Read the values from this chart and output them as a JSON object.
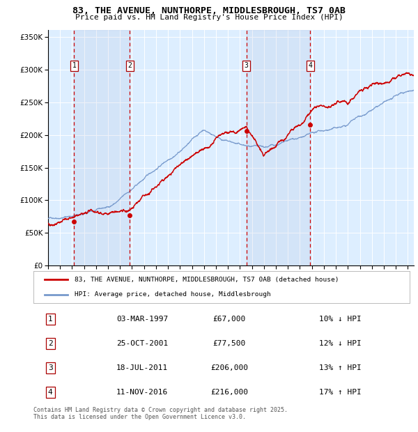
{
  "title": "83, THE AVENUE, NUNTHORPE, MIDDLESBROUGH, TS7 0AB",
  "subtitle": "Price paid vs. HM Land Registry's House Price Index (HPI)",
  "property_label": "83, THE AVENUE, NUNTHORPE, MIDDLESBROUGH, TS7 0AB (detached house)",
  "hpi_label": "HPI: Average price, detached house, Middlesbrough",
  "footnote": "Contains HM Land Registry data © Crown copyright and database right 2025.\nThis data is licensed under the Open Government Licence v3.0.",
  "transactions": [
    {
      "num": 1,
      "date": "03-MAR-1997",
      "price": 67000,
      "price_str": "£67,000",
      "pct": "10%",
      "dir": "↓",
      "year": 1997.17
    },
    {
      "num": 2,
      "date": "25-OCT-2001",
      "price": 77500,
      "price_str": "£77,500",
      "pct": "12%",
      "dir": "↓",
      "year": 2001.82
    },
    {
      "num": 3,
      "date": "18-JUL-2011",
      "price": 206000,
      "price_str": "£206,000",
      "pct": "13%",
      "dir": "↑",
      "year": 2011.54
    },
    {
      "num": 4,
      "date": "11-NOV-2016",
      "price": 216000,
      "price_str": "£216,000",
      "pct": "17%",
      "dir": "↑",
      "year": 2016.87
    }
  ],
  "property_color": "#cc0000",
  "hpi_color": "#7799cc",
  "plot_bg": "#ddeeff",
  "ylim": [
    0,
    360000
  ],
  "yticks": [
    0,
    50000,
    100000,
    150000,
    200000,
    250000,
    300000,
    350000
  ],
  "xlim_start": 1995.0,
  "xlim_end": 2025.5
}
